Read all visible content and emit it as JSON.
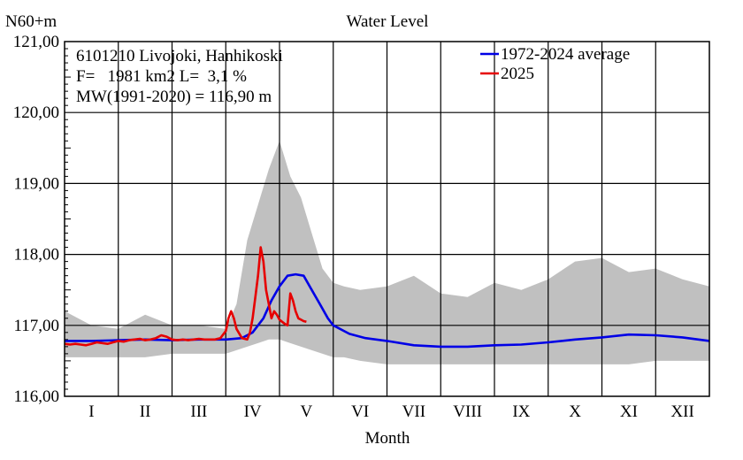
{
  "chart_data": {
    "type": "line",
    "title": "Water Level",
    "ylabel": "N60+m",
    "xlabel": "Month",
    "ylim": [
      116.0,
      121.0
    ],
    "yticks": [
      "116,00",
      "117,00",
      "118,00",
      "119,00",
      "120,00",
      "121,00"
    ],
    "categories": [
      "I",
      "II",
      "III",
      "IV",
      "V",
      "VI",
      "VII",
      "VIII",
      "IX",
      "X",
      "XI",
      "XII"
    ],
    "station": {
      "name": "6101210 Livojoki, Hanhikoski",
      "area_line": "F=   1981 km2 L=  3,1 %",
      "mean_line": "MW(1991-2020) = 116,90 m"
    },
    "legend": {
      "placement": "top-right"
    },
    "colors": {
      "average": "#0000e6",
      "current": "#e60000",
      "range": "#c0c0c0"
    },
    "range_band": {
      "x": [
        0,
        0.5,
        1,
        1.5,
        2,
        2.5,
        3,
        3.2,
        3.4,
        3.6,
        3.8,
        4.0,
        4.2,
        4.4,
        4.6,
        4.8,
        5.0,
        5.2,
        5.5,
        6,
        6.5,
        7,
        7.5,
        8,
        8.5,
        9,
        9.5,
        10,
        10.5,
        11,
        11.5,
        12
      ],
      "max": [
        117.2,
        117.0,
        116.95,
        117.15,
        117.0,
        117.0,
        116.95,
        117.3,
        118.2,
        118.7,
        119.2,
        119.6,
        119.1,
        118.8,
        118.3,
        117.8,
        117.6,
        117.55,
        117.5,
        117.55,
        117.7,
        117.45,
        117.4,
        117.6,
        117.5,
        117.65,
        117.9,
        117.95,
        117.75,
        117.8,
        117.65,
        117.55
      ],
      "min": [
        116.55,
        116.55,
        116.55,
        116.55,
        116.6,
        116.6,
        116.6,
        116.65,
        116.7,
        116.75,
        116.8,
        116.8,
        116.75,
        116.7,
        116.65,
        116.6,
        116.55,
        116.55,
        116.5,
        116.45,
        116.45,
        116.45,
        116.45,
        116.45,
        116.45,
        116.45,
        116.45,
        116.45,
        116.45,
        116.5,
        116.5,
        116.5
      ]
    },
    "series": [
      {
        "name": "1972-2024 average",
        "x": [
          0,
          0.5,
          1,
          1.5,
          2,
          2.5,
          3,
          3.3,
          3.5,
          3.7,
          3.85,
          4.0,
          4.15,
          4.3,
          4.45,
          4.6,
          4.75,
          4.9,
          5.0,
          5.3,
          5.6,
          6.0,
          6.5,
          7.0,
          7.5,
          8.0,
          8.5,
          9.0,
          9.5,
          10.0,
          10.5,
          11.0,
          11.5,
          12.0
        ],
        "y": [
          116.78,
          116.78,
          116.79,
          116.8,
          116.79,
          116.8,
          116.8,
          116.82,
          116.9,
          117.1,
          117.35,
          117.55,
          117.7,
          117.72,
          117.7,
          117.5,
          117.3,
          117.1,
          117.0,
          116.88,
          116.82,
          116.78,
          116.72,
          116.7,
          116.7,
          116.72,
          116.73,
          116.76,
          116.8,
          116.83,
          116.87,
          116.86,
          116.83,
          116.78
        ]
      },
      {
        "name": "2025",
        "x": [
          0,
          0.1,
          0.2,
          0.3,
          0.4,
          0.5,
          0.6,
          0.7,
          0.8,
          0.9,
          1.0,
          1.1,
          1.2,
          1.3,
          1.4,
          1.5,
          1.6,
          1.7,
          1.8,
          1.9,
          2.0,
          2.1,
          2.2,
          2.3,
          2.4,
          2.5,
          2.6,
          2.7,
          2.8,
          2.9,
          3.0,
          3.05,
          3.1,
          3.15,
          3.2,
          3.3,
          3.4,
          3.45,
          3.5,
          3.55,
          3.6,
          3.65,
          3.7,
          3.75,
          3.8,
          3.85,
          3.9,
          3.95,
          4.0,
          4.05,
          4.1,
          4.15,
          4.2,
          4.25,
          4.3,
          4.35,
          4.4,
          4.45,
          4.5
        ],
        "y": [
          116.74,
          116.73,
          116.74,
          116.73,
          116.72,
          116.74,
          116.76,
          116.75,
          116.74,
          116.76,
          116.78,
          116.77,
          116.79,
          116.8,
          116.81,
          116.79,
          116.8,
          116.82,
          116.86,
          116.84,
          116.8,
          116.79,
          116.8,
          116.79,
          116.8,
          116.81,
          116.8,
          116.8,
          116.8,
          116.82,
          116.92,
          117.1,
          117.2,
          117.1,
          116.95,
          116.82,
          116.8,
          116.9,
          117.1,
          117.4,
          117.7,
          118.1,
          117.9,
          117.5,
          117.3,
          117.1,
          117.2,
          117.15,
          117.08,
          117.05,
          117.02,
          117.0,
          117.45,
          117.35,
          117.2,
          117.1,
          117.08,
          117.06,
          117.05
        ]
      }
    ]
  }
}
